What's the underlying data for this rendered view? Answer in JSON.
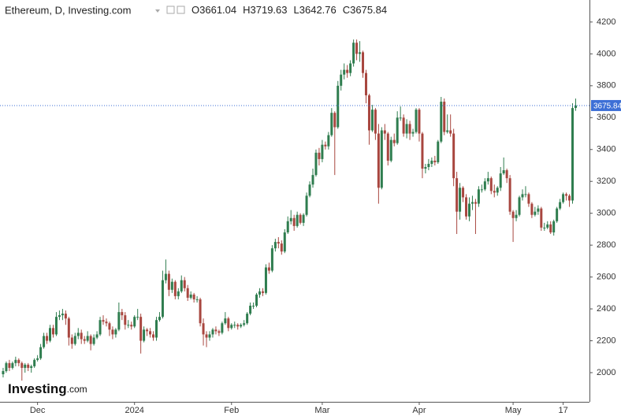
{
  "chart_data": {
    "type": "candlestick",
    "title": "Ethereum, D, Investing.com",
    "ohlc_labels": [
      "O",
      "H",
      "L",
      "C"
    ],
    "watermark": [
      "Investing",
      ".com"
    ],
    "up_color": "#2f7d4f",
    "down_color": "#a8463f",
    "price_line_color": "#3d6fd6",
    "ylim": [
      1817,
      4338
    ],
    "yticks": [
      2000,
      2200,
      2400,
      2600,
      2800,
      3000,
      3200,
      3400,
      3600,
      3800,
      4000,
      4200
    ],
    "categories": [
      null,
      null,
      null,
      null,
      null,
      null,
      null,
      null,
      null,
      null,
      null,
      "Dec",
      null,
      null,
      null,
      null,
      null,
      null,
      null,
      null,
      null,
      null,
      null,
      null,
      null,
      null,
      null,
      null,
      null,
      null,
      null,
      null,
      null,
      null,
      null,
      null,
      null,
      null,
      null,
      null,
      null,
      null,
      "2024",
      null,
      null,
      null,
      null,
      null,
      null,
      null,
      null,
      null,
      null,
      null,
      null,
      null,
      null,
      null,
      null,
      null,
      null,
      null,
      null,
      null,
      null,
      null,
      null,
      null,
      null,
      null,
      null,
      null,
      null,
      "Feb",
      null,
      null,
      null,
      null,
      null,
      null,
      null,
      null,
      null,
      null,
      null,
      null,
      null,
      null,
      null,
      null,
      null,
      null,
      null,
      null,
      null,
      null,
      null,
      null,
      null,
      null,
      null,
      null,
      "Mar",
      null,
      null,
      null,
      null,
      null,
      null,
      null,
      null,
      null,
      null,
      null,
      null,
      null,
      null,
      null,
      null,
      null,
      null,
      null,
      null,
      null,
      null,
      null,
      null,
      null,
      null,
      null,
      null,
      null,
      null,
      "Apr",
      null,
      null,
      null,
      null,
      null,
      null,
      null,
      null,
      null,
      null,
      null,
      null,
      null,
      null,
      null,
      null,
      null,
      null,
      null,
      null,
      null,
      null,
      null,
      null,
      null,
      null,
      null,
      null,
      null,
      "May",
      null,
      null,
      null,
      null,
      null,
      null,
      null,
      null,
      null,
      null,
      null,
      null,
      null,
      null,
      null,
      "17",
      null,
      null,
      null,
      null
    ],
    "values": [
      [
        1990,
        2030,
        1970,
        2010
      ],
      [
        2010,
        2070,
        2000,
        2060
      ],
      [
        2060,
        2080,
        2010,
        2030
      ],
      [
        2030,
        2070,
        2020,
        2060
      ],
      [
        2060,
        2100,
        2040,
        2080
      ],
      [
        2080,
        2090,
        2040,
        2060
      ],
      [
        2060,
        2070,
        1950,
        2030
      ],
      [
        2030,
        2060,
        2000,
        2050
      ],
      [
        2050,
        2060,
        2010,
        2030
      ],
      [
        2030,
        2050,
        2000,
        2040
      ],
      [
        2040,
        2090,
        2030,
        2080
      ],
      [
        2080,
        2110,
        2070,
        2090
      ],
      [
        2090,
        2180,
        2080,
        2160
      ],
      [
        2160,
        2250,
        2150,
        2230
      ],
      [
        2230,
        2250,
        2180,
        2200
      ],
      [
        2200,
        2300,
        2190,
        2280
      ],
      [
        2280,
        2300,
        2220,
        2240
      ],
      [
        2240,
        2380,
        2230,
        2350
      ],
      [
        2350,
        2390,
        2330,
        2360
      ],
      [
        2360,
        2400,
        2330,
        2370
      ],
      [
        2370,
        2390,
        2300,
        2340
      ],
      [
        2340,
        2350,
        2170,
        2220
      ],
      [
        2220,
        2240,
        2150,
        2180
      ],
      [
        2180,
        2250,
        2170,
        2230
      ],
      [
        2230,
        2280,
        2210,
        2250
      ],
      [
        2250,
        2270,
        2180,
        2210
      ],
      [
        2210,
        2230,
        2180,
        2200
      ],
      [
        2200,
        2260,
        2190,
        2230
      ],
      [
        2230,
        2240,
        2140,
        2180
      ],
      [
        2180,
        2240,
        2170,
        2220
      ],
      [
        2220,
        2260,
        2210,
        2240
      ],
      [
        2240,
        2350,
        2230,
        2330
      ],
      [
        2330,
        2360,
        2300,
        2320
      ],
      [
        2320,
        2340,
        2290,
        2310
      ],
      [
        2310,
        2320,
        2230,
        2270
      ],
      [
        2270,
        2290,
        2210,
        2240
      ],
      [
        2240,
        2280,
        2220,
        2270
      ],
      [
        2270,
        2440,
        2260,
        2380
      ],
      [
        2380,
        2400,
        2330,
        2360
      ],
      [
        2360,
        2380,
        2270,
        2300
      ],
      [
        2300,
        2330,
        2280,
        2300
      ],
      [
        2300,
        2320,
        2270,
        2290
      ],
      [
        2290,
        2360,
        2280,
        2350
      ],
      [
        2350,
        2400,
        2330,
        2350
      ],
      [
        2350,
        2370,
        2120,
        2200
      ],
      [
        2200,
        2290,
        2190,
        2270
      ],
      [
        2270,
        2280,
        2230,
        2260
      ],
      [
        2260,
        2280,
        2220,
        2240
      ],
      [
        2240,
        2260,
        2200,
        2220
      ],
      [
        2220,
        2350,
        2200,
        2330
      ],
      [
        2330,
        2380,
        2320,
        2350
      ],
      [
        2350,
        2640,
        2340,
        2580
      ],
      [
        2580,
        2710,
        2560,
        2620
      ],
      [
        2620,
        2640,
        2480,
        2520
      ],
      [
        2520,
        2590,
        2500,
        2570
      ],
      [
        2570,
        2580,
        2460,
        2480
      ],
      [
        2480,
        2530,
        2460,
        2510
      ],
      [
        2510,
        2610,
        2500,
        2580
      ],
      [
        2580,
        2600,
        2510,
        2530
      ],
      [
        2530,
        2550,
        2450,
        2470
      ],
      [
        2470,
        2510,
        2460,
        2490
      ],
      [
        2490,
        2500,
        2440,
        2460
      ],
      [
        2460,
        2480,
        2440,
        2460
      ],
      [
        2460,
        2470,
        2290,
        2310
      ],
      [
        2310,
        2340,
        2170,
        2240
      ],
      [
        2240,
        2260,
        2160,
        2220
      ],
      [
        2220,
        2260,
        2200,
        2240
      ],
      [
        2240,
        2280,
        2220,
        2270
      ],
      [
        2270,
        2290,
        2240,
        2260
      ],
      [
        2260,
        2270,
        2230,
        2250
      ],
      [
        2250,
        2320,
        2240,
        2310
      ],
      [
        2310,
        2380,
        2300,
        2340
      ],
      [
        2340,
        2350,
        2260,
        2280
      ],
      [
        2280,
        2310,
        2270,
        2300
      ],
      [
        2300,
        2320,
        2280,
        2300
      ],
      [
        2300,
        2310,
        2270,
        2290
      ],
      [
        2290,
        2310,
        2280,
        2300
      ],
      [
        2300,
        2330,
        2290,
        2310
      ],
      [
        2310,
        2380,
        2300,
        2370
      ],
      [
        2370,
        2440,
        2360,
        2420
      ],
      [
        2420,
        2440,
        2400,
        2420
      ],
      [
        2420,
        2500,
        2410,
        2490
      ],
      [
        2490,
        2530,
        2470,
        2510
      ],
      [
        2510,
        2530,
        2480,
        2500
      ],
      [
        2500,
        2680,
        2490,
        2660
      ],
      [
        2660,
        2690,
        2620,
        2640
      ],
      [
        2640,
        2800,
        2630,
        2780
      ],
      [
        2780,
        2840,
        2760,
        2820
      ],
      [
        2820,
        2850,
        2780,
        2810
      ],
      [
        2810,
        2830,
        2740,
        2760
      ],
      [
        2760,
        2900,
        2750,
        2880
      ],
      [
        2880,
        2980,
        2870,
        2950
      ],
      [
        2950,
        3020,
        2930,
        2970
      ],
      [
        2970,
        2990,
        2890,
        2920
      ],
      [
        2920,
        3010,
        2910,
        2990
      ],
      [
        2990,
        3000,
        2930,
        2940
      ],
      [
        2940,
        3000,
        2920,
        2990
      ],
      [
        2990,
        3130,
        2980,
        3110
      ],
      [
        3110,
        3200,
        3100,
        3180
      ],
      [
        3180,
        3280,
        3160,
        3240
      ],
      [
        3240,
        3400,
        3230,
        3380
      ],
      [
        3380,
        3410,
        3300,
        3340
      ],
      [
        3340,
        3460,
        3320,
        3430
      ],
      [
        3430,
        3450,
        3400,
        3420
      ],
      [
        3420,
        3510,
        3400,
        3490
      ],
      [
        3490,
        3660,
        3480,
        3630
      ],
      [
        3630,
        3640,
        3240,
        3540
      ],
      [
        3540,
        3830,
        3530,
        3800
      ],
      [
        3800,
        3900,
        3770,
        3870
      ],
      [
        3870,
        3940,
        3840,
        3900
      ],
      [
        3900,
        3930,
        3850,
        3880
      ],
      [
        3880,
        3960,
        3860,
        3940
      ],
      [
        3940,
        4090,
        3920,
        4070
      ],
      [
        4070,
        4090,
        3960,
        4000
      ],
      [
        4000,
        4080,
        3950,
        4010
      ],
      [
        4010,
        4020,
        3850,
        3880
      ],
      [
        3880,
        3900,
        3690,
        3740
      ],
      [
        3740,
        3750,
        3430,
        3520
      ],
      [
        3520,
        3680,
        3510,
        3650
      ],
      [
        3650,
        3660,
        3460,
        3500
      ],
      [
        3500,
        3560,
        3060,
        3160
      ],
      [
        3160,
        3540,
        3150,
        3520
      ],
      [
        3520,
        3560,
        3460,
        3500
      ],
      [
        3500,
        3510,
        3300,
        3330
      ],
      [
        3330,
        3480,
        3320,
        3460
      ],
      [
        3460,
        3500,
        3420,
        3440
      ],
      [
        3440,
        3640,
        3430,
        3600
      ],
      [
        3600,
        3670,
        3580,
        3600
      ],
      [
        3600,
        3620,
        3480,
        3500
      ],
      [
        3500,
        3590,
        3470,
        3560
      ],
      [
        3560,
        3580,
        3460,
        3500
      ],
      [
        3500,
        3530,
        3480,
        3510
      ],
      [
        3510,
        3660,
        3500,
        3650
      ],
      [
        3650,
        3660,
        3450,
        3500
      ],
      [
        3500,
        3510,
        3220,
        3280
      ],
      [
        3280,
        3310,
        3250,
        3290
      ],
      [
        3290,
        3340,
        3270,
        3310
      ],
      [
        3310,
        3350,
        3290,
        3330
      ],
      [
        3330,
        3360,
        3300,
        3320
      ],
      [
        3320,
        3460,
        3310,
        3450
      ],
      [
        3450,
        3730,
        3440,
        3700
      ],
      [
        3700,
        3720,
        3490,
        3510
      ],
      [
        3510,
        3620,
        3500,
        3520
      ],
      [
        3520,
        3620,
        3480,
        3500
      ],
      [
        3500,
        3530,
        3170,
        3220
      ],
      [
        3220,
        3260,
        2870,
        3010
      ],
      [
        3010,
        3190,
        2960,
        3160
      ],
      [
        3160,
        3170,
        3070,
        3100
      ],
      [
        3100,
        3120,
        2960,
        2980
      ],
      [
        2980,
        3100,
        2950,
        3060
      ],
      [
        3060,
        3110,
        3020,
        3070
      ],
      [
        3070,
        3090,
        2870,
        3060
      ],
      [
        3060,
        3170,
        3040,
        3150
      ],
      [
        3150,
        3180,
        3130,
        3150
      ],
      [
        3150,
        3220,
        3140,
        3200
      ],
      [
        3200,
        3260,
        3180,
        3220
      ],
      [
        3220,
        3230,
        3120,
        3140
      ],
      [
        3140,
        3180,
        3100,
        3130
      ],
      [
        3130,
        3170,
        3110,
        3160
      ],
      [
        3160,
        3290,
        3140,
        3250
      ],
      [
        3250,
        3350,
        3240,
        3270
      ],
      [
        3270,
        3280,
        3190,
        3220
      ],
      [
        3220,
        3240,
        2990,
        3010
      ],
      [
        3010,
        3020,
        2820,
        2970
      ],
      [
        2970,
        3020,
        2950,
        2990
      ],
      [
        2990,
        3110,
        2980,
        3100
      ],
      [
        3100,
        3150,
        3080,
        3120
      ],
      [
        3120,
        3170,
        3100,
        3120
      ],
      [
        3120,
        3130,
        3040,
        3060
      ],
      [
        3060,
        3070,
        2970,
        2990
      ],
      [
        2990,
        3040,
        2980,
        3010
      ],
      [
        3010,
        3050,
        2990,
        3030
      ],
      [
        3030,
        3040,
        2890,
        2910
      ],
      [
        2910,
        2940,
        2890,
        2910
      ],
      [
        2910,
        2950,
        2900,
        2930
      ],
      [
        2930,
        2950,
        2870,
        2880
      ],
      [
        2880,
        2960,
        2860,
        2950
      ],
      [
        2950,
        3040,
        2940,
        3030
      ],
      [
        3030,
        3090,
        3020,
        3070
      ],
      [
        3070,
        3130,
        3060,
        3120
      ],
      [
        3120,
        3130,
        3080,
        3110
      ],
      [
        3110,
        3120,
        3040,
        3080
      ],
      [
        3080,
        3690,
        3060,
        3660
      ],
      [
        3661.04,
        3719.63,
        3642.76,
        3675.84
      ]
    ]
  }
}
